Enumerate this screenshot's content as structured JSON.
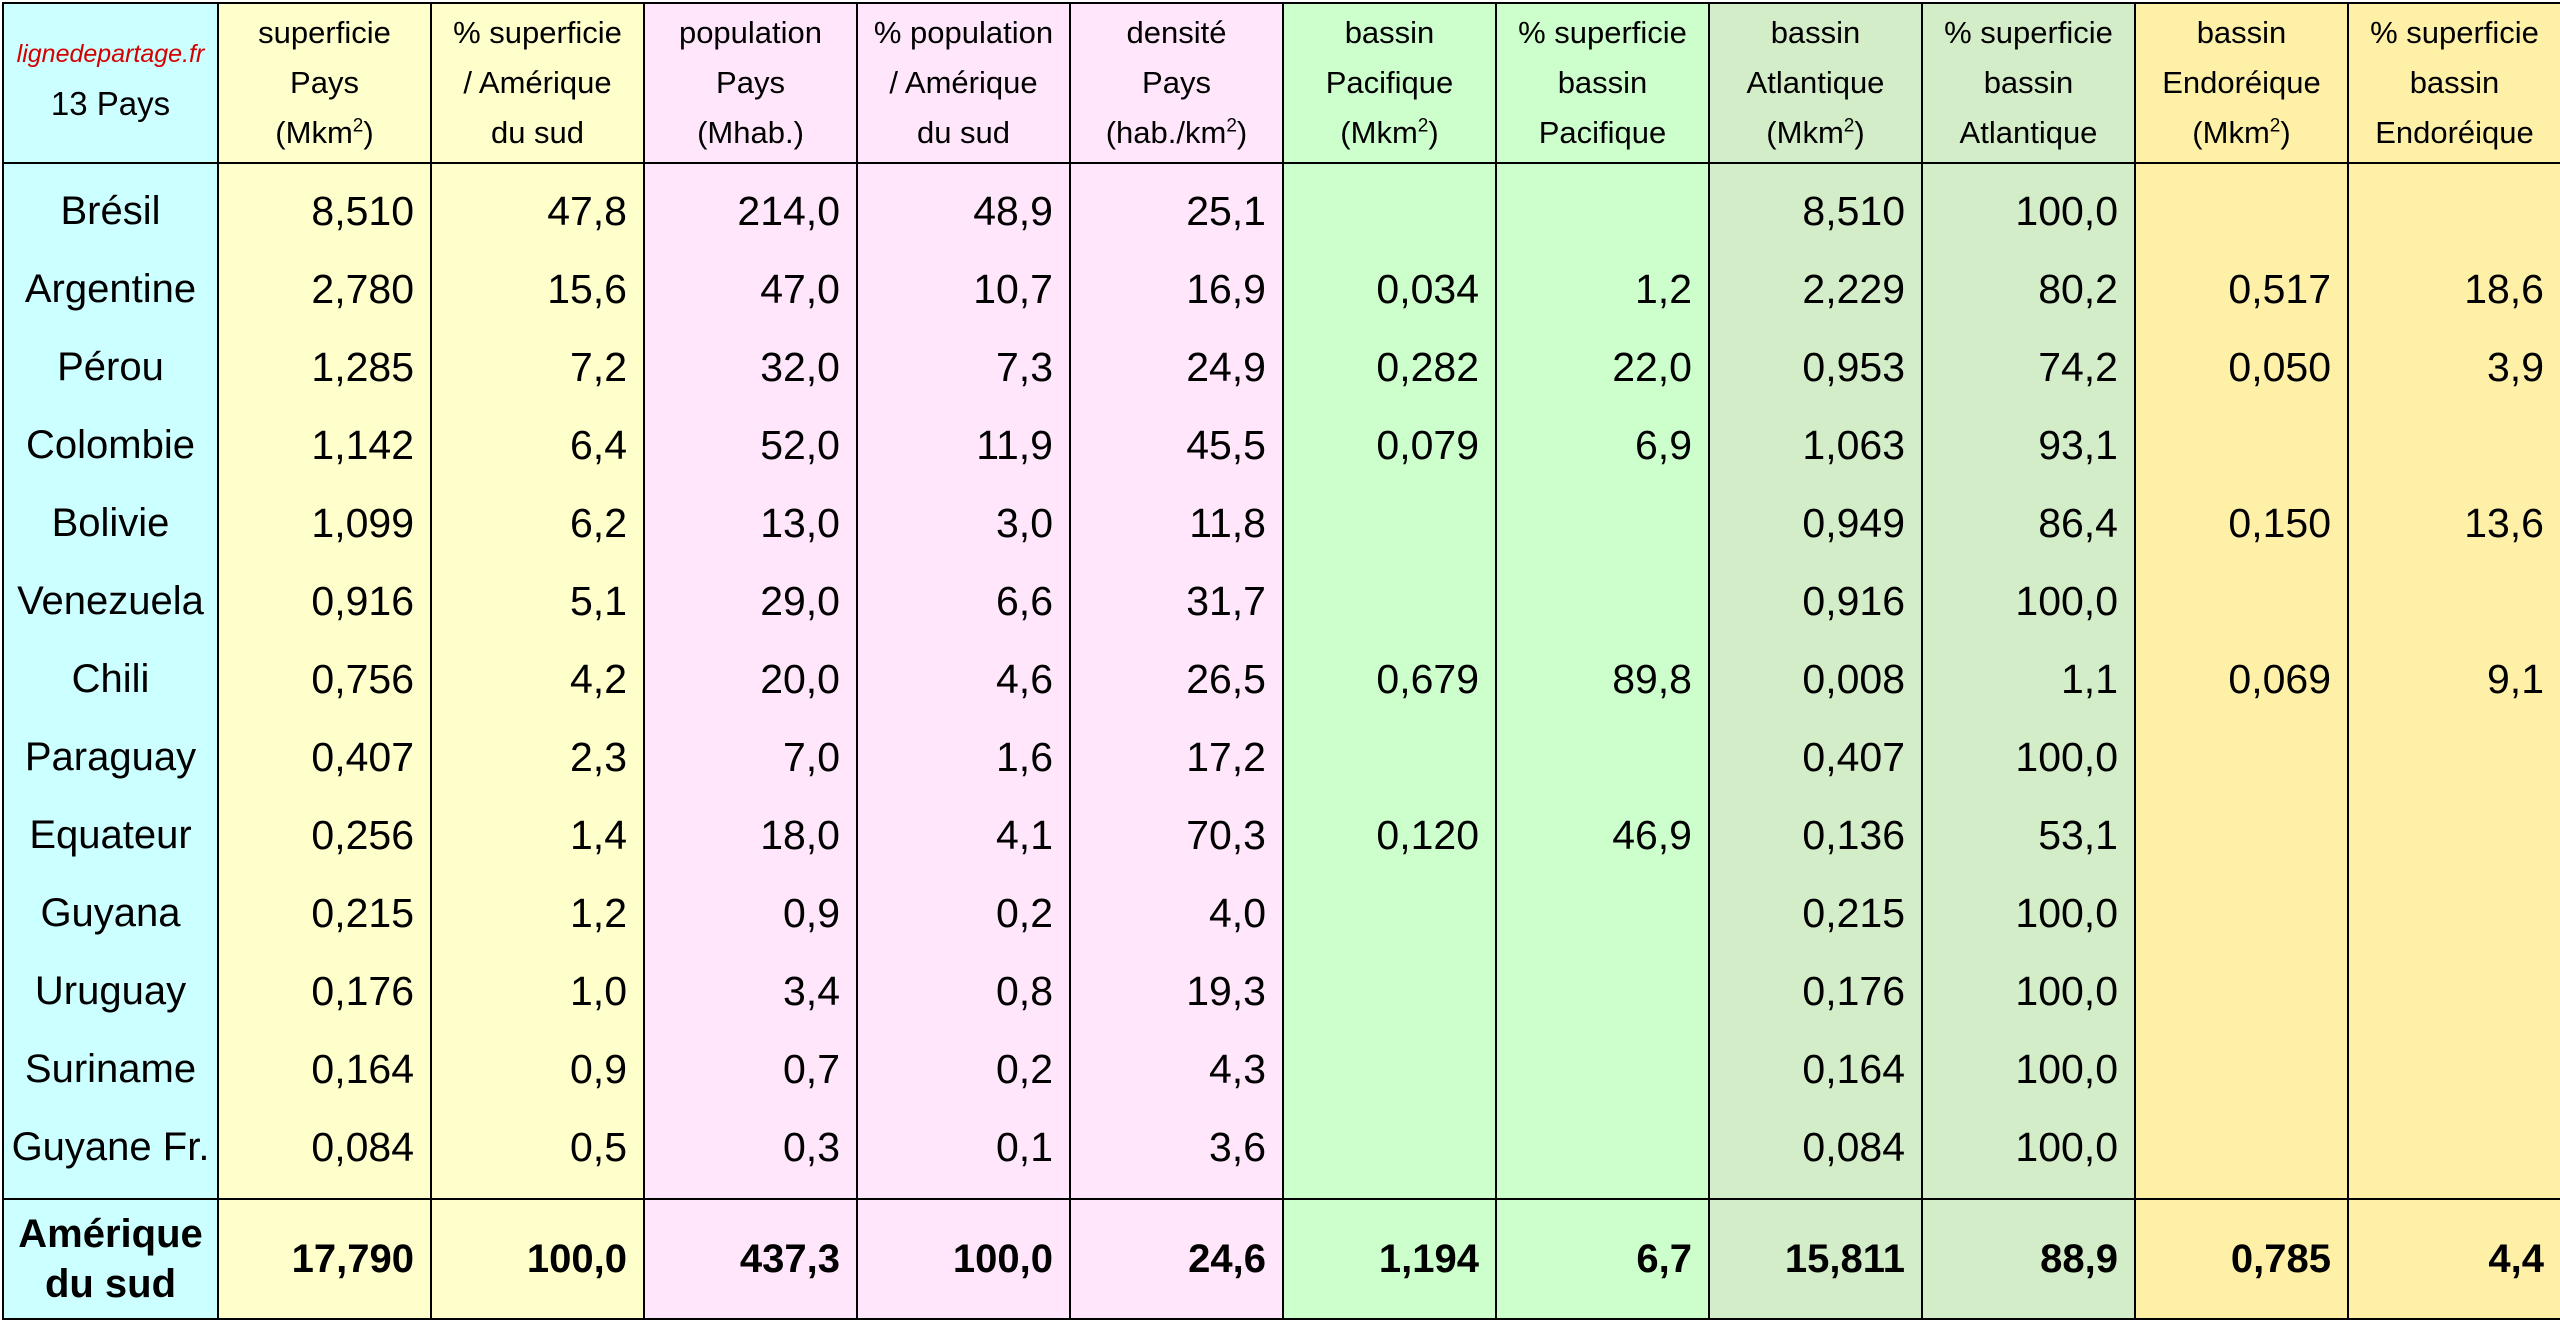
{
  "header": {
    "site": "lignedepartage.fr",
    "country_count": "13 Pays",
    "columns": [
      {
        "lines": [
          "superficie",
          "Pays"
        ],
        "unit_open": "(Mkm",
        "unit_sup": "2",
        "unit_close": ")"
      },
      {
        "lines": [
          "% superficie",
          "/ Amérique",
          "du sud"
        ]
      },
      {
        "lines": [
          "population",
          "Pays",
          "(Mhab.)"
        ]
      },
      {
        "lines": [
          "% population",
          "/ Amérique",
          "du sud"
        ]
      },
      {
        "lines": [
          "densité",
          "Pays"
        ],
        "unit_open": "(hab./km",
        "unit_sup": "2",
        "unit_close": ")"
      },
      {
        "lines": [
          "bassin",
          "Pacifique"
        ],
        "unit_open": "(Mkm",
        "unit_sup": "2",
        "unit_close": ")"
      },
      {
        "lines": [
          "% superficie",
          "bassin",
          "Pacifique"
        ]
      },
      {
        "lines": [
          "bassin",
          "Atlantique"
        ],
        "unit_open": "(Mkm",
        "unit_sup": "2",
        "unit_close": ")"
      },
      {
        "lines": [
          "% superficie",
          "bassin",
          "Atlantique"
        ]
      },
      {
        "lines": [
          "bassin",
          "Endoréique"
        ],
        "unit_open": "(Mkm",
        "unit_sup": "2",
        "unit_close": ")"
      },
      {
        "lines": [
          "% superficie",
          "bassin",
          "Endoréique"
        ]
      }
    ]
  },
  "column_colors": [
    "#ccffff",
    "#ffffcc",
    "#ffffcc",
    "#ffe6fb",
    "#ffe6fb",
    "#ffe6fb",
    "#ccffcc",
    "#ccffcc",
    "#d3edc8",
    "#d3edc8",
    "#fff0a8",
    "#fff0a8"
  ],
  "rows": [
    {
      "name": "Brésil",
      "values": [
        "8,510",
        "47,8",
        "214,0",
        "48,9",
        "25,1",
        "",
        "",
        "8,510",
        "100,0",
        "",
        ""
      ]
    },
    {
      "name": "Argentine",
      "values": [
        "2,780",
        "15,6",
        "47,0",
        "10,7",
        "16,9",
        "0,034",
        "1,2",
        "2,229",
        "80,2",
        "0,517",
        "18,6"
      ]
    },
    {
      "name": "Pérou",
      "values": [
        "1,285",
        "7,2",
        "32,0",
        "7,3",
        "24,9",
        "0,282",
        "22,0",
        "0,953",
        "74,2",
        "0,050",
        "3,9"
      ]
    },
    {
      "name": "Colombie",
      "values": [
        "1,142",
        "6,4",
        "52,0",
        "11,9",
        "45,5",
        "0,079",
        "6,9",
        "1,063",
        "93,1",
        "",
        ""
      ]
    },
    {
      "name": "Bolivie",
      "values": [
        "1,099",
        "6,2",
        "13,0",
        "3,0",
        "11,8",
        "",
        "",
        "0,949",
        "86,4",
        "0,150",
        "13,6"
      ]
    },
    {
      "name": "Venezuela",
      "values": [
        "0,916",
        "5,1",
        "29,0",
        "6,6",
        "31,7",
        "",
        "",
        "0,916",
        "100,0",
        "",
        ""
      ]
    },
    {
      "name": "Chili",
      "values": [
        "0,756",
        "4,2",
        "20,0",
        "4,6",
        "26,5",
        "0,679",
        "89,8",
        "0,008",
        "1,1",
        "0,069",
        "9,1"
      ]
    },
    {
      "name": "Paraguay",
      "values": [
        "0,407",
        "2,3",
        "7,0",
        "1,6",
        "17,2",
        "",
        "",
        "0,407",
        "100,0",
        "",
        ""
      ]
    },
    {
      "name": "Equateur",
      "values": [
        "0,256",
        "1,4",
        "18,0",
        "4,1",
        "70,3",
        "0,120",
        "46,9",
        "0,136",
        "53,1",
        "",
        ""
      ]
    },
    {
      "name": "Guyana",
      "values": [
        "0,215",
        "1,2",
        "0,9",
        "0,2",
        "4,0",
        "",
        "",
        "0,215",
        "100,0",
        "",
        ""
      ]
    },
    {
      "name": "Uruguay",
      "values": [
        "0,176",
        "1,0",
        "3,4",
        "0,8",
        "19,3",
        "",
        "",
        "0,176",
        "100,0",
        "",
        ""
      ]
    },
    {
      "name": "Suriname",
      "values": [
        "0,164",
        "0,9",
        "0,7",
        "0,2",
        "4,3",
        "",
        "",
        "0,164",
        "100,0",
        "",
        ""
      ]
    },
    {
      "name": "Guyane Fr.",
      "values": [
        "0,084",
        "0,5",
        "0,3",
        "0,1",
        "3,6",
        "",
        "",
        "0,084",
        "100,0",
        "",
        ""
      ]
    }
  ],
  "total": {
    "name_lines": [
      "Amérique",
      "du sud"
    ],
    "values": [
      "17,790",
      "100,0",
      "437,3",
      "100,0",
      "24,6",
      "1,194",
      "6,7",
      "15,811",
      "88,9",
      "0,785",
      "4,4"
    ]
  }
}
